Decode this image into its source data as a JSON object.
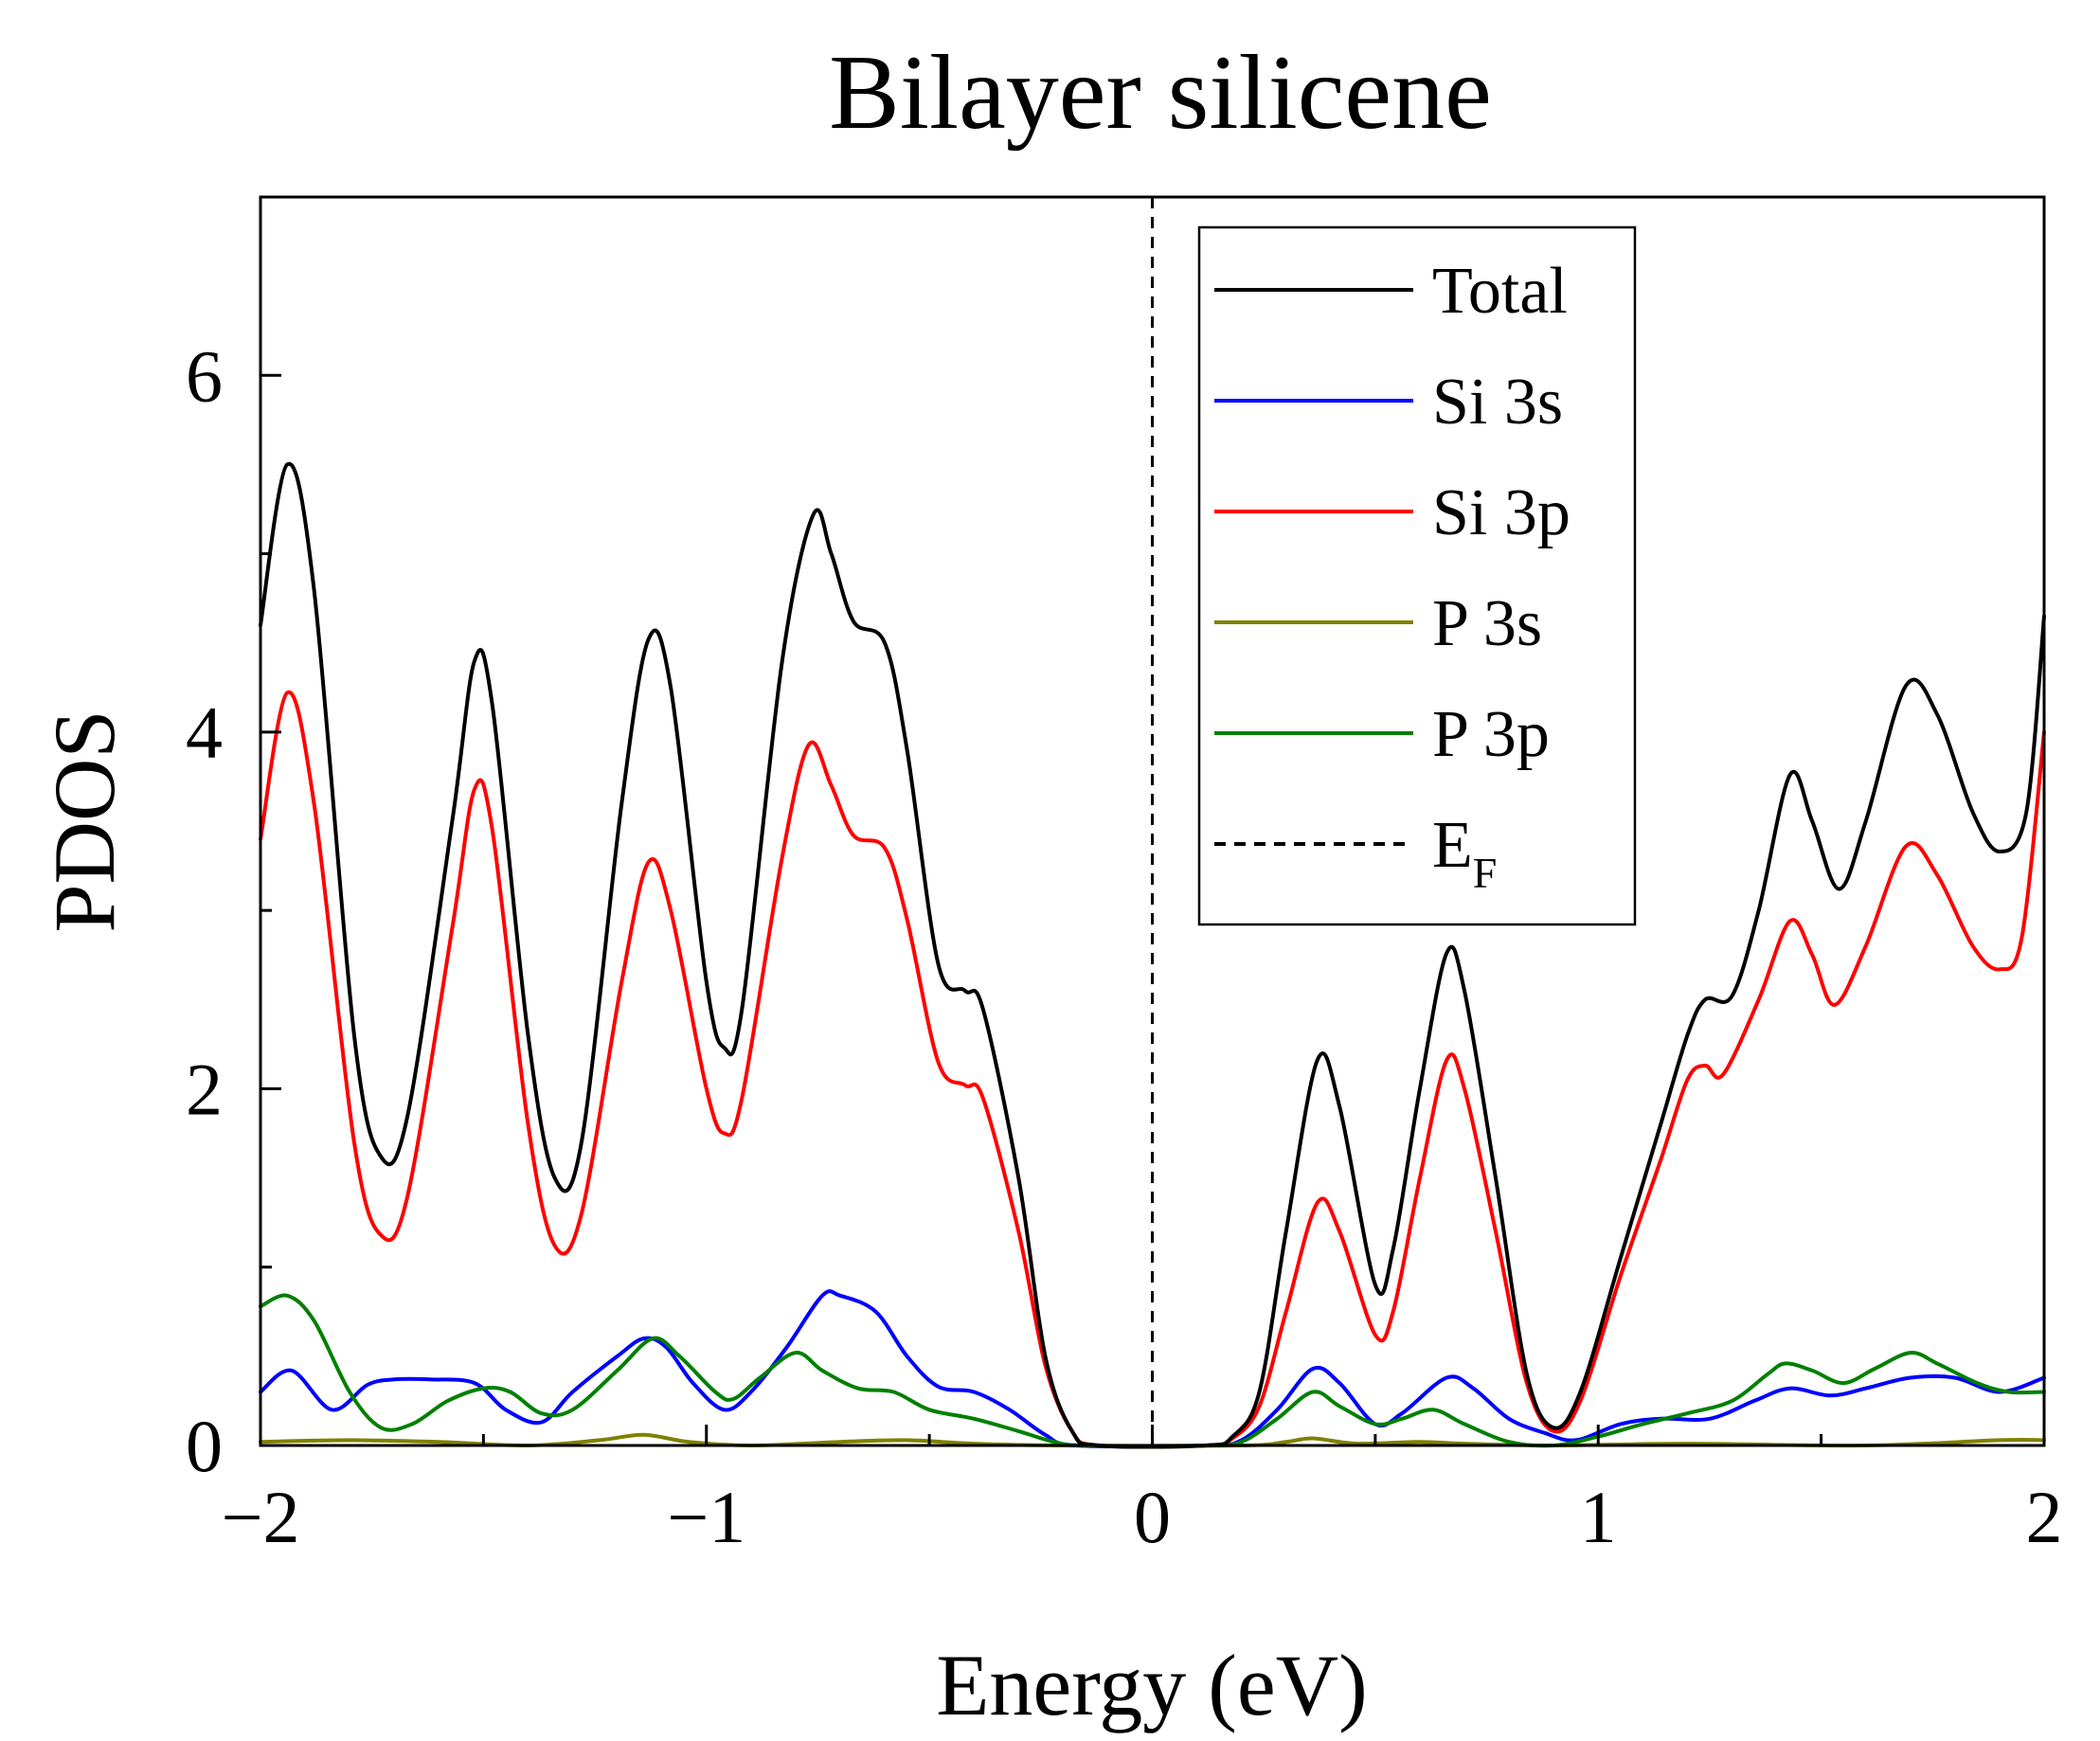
{
  "chart_data": {
    "type": "line",
    "title": "Bilayer silicene",
    "xlabel": "Energy (eV)",
    "ylabel": "PDOS",
    "xlim": [
      -2,
      2
    ],
    "ylim": [
      0,
      7
    ],
    "xticks": [
      -2,
      -1,
      0,
      1,
      2
    ],
    "xtick_labels": [
      "−2",
      "−1",
      "0",
      "1",
      "2"
    ],
    "yticks": [
      0,
      2,
      4,
      6
    ],
    "ytick_labels": [
      "0",
      "2",
      "4",
      "6"
    ],
    "fermi_level": {
      "x": 0,
      "label": "E",
      "label_sub": "F",
      "style": "dashed",
      "color": "#000000"
    },
    "legend": {
      "position": "top-right"
    },
    "series": [
      {
        "name": "Total",
        "color": "#000000",
        "points": [
          [
            -2,
            4.6
          ],
          [
            -1.94,
            5.5
          ],
          [
            -1.88,
            4.8
          ],
          [
            -1.79,
            2.3
          ],
          [
            -1.73,
            1.62
          ],
          [
            -1.67,
            1.85
          ],
          [
            -1.57,
            3.5
          ],
          [
            -1.52,
            4.4
          ],
          [
            -1.48,
            4.15
          ],
          [
            -1.4,
            2.3
          ],
          [
            -1.34,
            1.5
          ],
          [
            -1.28,
            1.7
          ],
          [
            -1.19,
            3.6
          ],
          [
            -1.13,
            4.52
          ],
          [
            -1.08,
            4.25
          ],
          [
            -1.0,
            2.6
          ],
          [
            -0.96,
            2.23
          ],
          [
            -0.92,
            2.45
          ],
          [
            -0.83,
            4.4
          ],
          [
            -0.76,
            5.22
          ],
          [
            -0.72,
            5.0
          ],
          [
            -0.67,
            4.62
          ],
          [
            -0.6,
            4.5
          ],
          [
            -0.55,
            3.9
          ],
          [
            -0.48,
            2.7
          ],
          [
            -0.42,
            2.55
          ],
          [
            -0.38,
            2.45
          ],
          [
            -0.3,
            1.5
          ],
          [
            -0.24,
            0.5
          ],
          [
            -0.18,
            0.08
          ],
          [
            -0.12,
            0.0
          ],
          [
            0.12,
            0.0
          ],
          [
            0.18,
            0.05
          ],
          [
            0.24,
            0.3
          ],
          [
            0.3,
            1.2
          ],
          [
            0.37,
            2.16
          ],
          [
            0.42,
            1.9
          ],
          [
            0.5,
            0.9
          ],
          [
            0.54,
            1.1
          ],
          [
            0.6,
            2.0
          ],
          [
            0.66,
            2.76
          ],
          [
            0.7,
            2.55
          ],
          [
            0.77,
            1.5
          ],
          [
            0.84,
            0.4
          ],
          [
            0.9,
            0.1
          ],
          [
            0.96,
            0.3
          ],
          [
            1.05,
            1.05
          ],
          [
            1.14,
            1.8
          ],
          [
            1.2,
            2.3
          ],
          [
            1.24,
            2.5
          ],
          [
            1.3,
            2.52
          ],
          [
            1.36,
            3.0
          ],
          [
            1.43,
            3.76
          ],
          [
            1.48,
            3.5
          ],
          [
            1.54,
            3.12
          ],
          [
            1.6,
            3.5
          ],
          [
            1.69,
            4.26
          ],
          [
            1.76,
            4.1
          ],
          [
            1.84,
            3.55
          ],
          [
            1.9,
            3.33
          ],
          [
            1.96,
            3.55
          ],
          [
            2.0,
            4.65
          ]
        ]
      },
      {
        "name": "Si 3s",
        "color": "#0000ff",
        "points": [
          [
            -2,
            0.3
          ],
          [
            -1.93,
            0.42
          ],
          [
            -1.84,
            0.2
          ],
          [
            -1.76,
            0.34
          ],
          [
            -1.7,
            0.37
          ],
          [
            -1.62,
            0.37
          ],
          [
            -1.52,
            0.35
          ],
          [
            -1.45,
            0.2
          ],
          [
            -1.37,
            0.13
          ],
          [
            -1.3,
            0.3
          ],
          [
            -1.2,
            0.5
          ],
          [
            -1.14,
            0.6
          ],
          [
            -1.09,
            0.55
          ],
          [
            -1.03,
            0.35
          ],
          [
            -0.96,
            0.2
          ],
          [
            -0.9,
            0.3
          ],
          [
            -0.82,
            0.55
          ],
          [
            -0.74,
            0.84
          ],
          [
            -0.7,
            0.84
          ],
          [
            -0.62,
            0.75
          ],
          [
            -0.55,
            0.5
          ],
          [
            -0.48,
            0.33
          ],
          [
            -0.4,
            0.3
          ],
          [
            -0.32,
            0.2
          ],
          [
            -0.24,
            0.06
          ],
          [
            -0.17,
            0.0
          ],
          [
            0.12,
            0.0
          ],
          [
            0.2,
            0.03
          ],
          [
            0.28,
            0.2
          ],
          [
            0.36,
            0.43
          ],
          [
            0.42,
            0.35
          ],
          [
            0.5,
            0.12
          ],
          [
            0.56,
            0.18
          ],
          [
            0.66,
            0.38
          ],
          [
            0.72,
            0.32
          ],
          [
            0.8,
            0.15
          ],
          [
            0.88,
            0.07
          ],
          [
            0.95,
            0.03
          ],
          [
            1.05,
            0.12
          ],
          [
            1.14,
            0.15
          ],
          [
            1.25,
            0.15
          ],
          [
            1.35,
            0.25
          ],
          [
            1.43,
            0.32
          ],
          [
            1.52,
            0.28
          ],
          [
            1.6,
            0.32
          ],
          [
            1.7,
            0.38
          ],
          [
            1.8,
            0.38
          ],
          [
            1.9,
            0.3
          ],
          [
            2.0,
            0.38
          ]
        ]
      },
      {
        "name": "Si 3p",
        "color": "#ff0000",
        "points": [
          [
            -2,
            3.4
          ],
          [
            -1.94,
            4.22
          ],
          [
            -1.88,
            3.6
          ],
          [
            -1.79,
            1.7
          ],
          [
            -1.73,
            1.18
          ],
          [
            -1.67,
            1.4
          ],
          [
            -1.57,
            2.9
          ],
          [
            -1.52,
            3.68
          ],
          [
            -1.48,
            3.45
          ],
          [
            -1.4,
            1.8
          ],
          [
            -1.34,
            1.12
          ],
          [
            -1.28,
            1.3
          ],
          [
            -1.19,
            2.6
          ],
          [
            -1.13,
            3.27
          ],
          [
            -1.08,
            3.0
          ],
          [
            -1.0,
            2.0
          ],
          [
            -0.96,
            1.75
          ],
          [
            -0.92,
            1.95
          ],
          [
            -0.83,
            3.3
          ],
          [
            -0.77,
            3.93
          ],
          [
            -0.72,
            3.7
          ],
          [
            -0.67,
            3.42
          ],
          [
            -0.6,
            3.35
          ],
          [
            -0.55,
            2.95
          ],
          [
            -0.48,
            2.15
          ],
          [
            -0.42,
            2.02
          ],
          [
            -0.38,
            1.95
          ],
          [
            -0.3,
            1.2
          ],
          [
            -0.24,
            0.45
          ],
          [
            -0.18,
            0.08
          ],
          [
            -0.12,
            0.0
          ],
          [
            0.12,
            0.0
          ],
          [
            0.18,
            0.04
          ],
          [
            0.24,
            0.22
          ],
          [
            0.3,
            0.75
          ],
          [
            0.37,
            1.36
          ],
          [
            0.42,
            1.2
          ],
          [
            0.5,
            0.62
          ],
          [
            0.54,
            0.75
          ],
          [
            0.6,
            1.5
          ],
          [
            0.66,
            2.16
          ],
          [
            0.7,
            2.0
          ],
          [
            0.77,
            1.2
          ],
          [
            0.84,
            0.35
          ],
          [
            0.9,
            0.08
          ],
          [
            0.96,
            0.25
          ],
          [
            1.05,
            0.95
          ],
          [
            1.14,
            1.6
          ],
          [
            1.2,
            2.05
          ],
          [
            1.24,
            2.13
          ],
          [
            1.28,
            2.08
          ],
          [
            1.36,
            2.5
          ],
          [
            1.43,
            2.94
          ],
          [
            1.48,
            2.75
          ],
          [
            1.53,
            2.47
          ],
          [
            1.6,
            2.8
          ],
          [
            1.69,
            3.36
          ],
          [
            1.76,
            3.2
          ],
          [
            1.84,
            2.8
          ],
          [
            1.9,
            2.67
          ],
          [
            1.95,
            2.85
          ],
          [
            2.0,
            4.0
          ]
        ]
      },
      {
        "name": "P 3s",
        "color": "#808000",
        "points": [
          [
            -2,
            0.02
          ],
          [
            -1.8,
            0.03
          ],
          [
            -1.6,
            0.02
          ],
          [
            -1.4,
            0.0
          ],
          [
            -1.24,
            0.03
          ],
          [
            -1.14,
            0.06
          ],
          [
            -1.04,
            0.02
          ],
          [
            -0.9,
            0.0
          ],
          [
            -0.7,
            0.02
          ],
          [
            -0.55,
            0.03
          ],
          [
            -0.4,
            0.01
          ],
          [
            -0.2,
            0.0
          ],
          [
            0.2,
            0.0
          ],
          [
            0.3,
            0.02
          ],
          [
            0.36,
            0.04
          ],
          [
            0.46,
            0.01
          ],
          [
            0.6,
            0.02
          ],
          [
            0.7,
            0.01
          ],
          [
            0.9,
            0.0
          ],
          [
            1.2,
            0.01
          ],
          [
            1.6,
            0.0
          ],
          [
            1.9,
            0.03
          ],
          [
            2.0,
            0.03
          ]
        ]
      },
      {
        "name": "P 3p",
        "color": "#008000",
        "points": [
          [
            -2,
            0.78
          ],
          [
            -1.94,
            0.84
          ],
          [
            -1.88,
            0.7
          ],
          [
            -1.8,
            0.3
          ],
          [
            -1.73,
            0.1
          ],
          [
            -1.66,
            0.12
          ],
          [
            -1.58,
            0.25
          ],
          [
            -1.5,
            0.32
          ],
          [
            -1.44,
            0.3
          ],
          [
            -1.37,
            0.18
          ],
          [
            -1.3,
            0.2
          ],
          [
            -1.2,
            0.42
          ],
          [
            -1.12,
            0.6
          ],
          [
            -1.06,
            0.5
          ],
          [
            -0.98,
            0.3
          ],
          [
            -0.94,
            0.26
          ],
          [
            -0.88,
            0.38
          ],
          [
            -0.8,
            0.52
          ],
          [
            -0.74,
            0.42
          ],
          [
            -0.66,
            0.32
          ],
          [
            -0.58,
            0.3
          ],
          [
            -0.5,
            0.2
          ],
          [
            -0.4,
            0.15
          ],
          [
            -0.3,
            0.08
          ],
          [
            -0.22,
            0.02
          ],
          [
            -0.15,
            0.0
          ],
          [
            0.12,
            0.0
          ],
          [
            0.2,
            0.02
          ],
          [
            0.28,
            0.15
          ],
          [
            0.36,
            0.3
          ],
          [
            0.42,
            0.22
          ],
          [
            0.5,
            0.12
          ],
          [
            0.56,
            0.15
          ],
          [
            0.63,
            0.2
          ],
          [
            0.7,
            0.12
          ],
          [
            0.8,
            0.02
          ],
          [
            0.9,
            0.0
          ],
          [
            1.0,
            0.05
          ],
          [
            1.1,
            0.12
          ],
          [
            1.2,
            0.18
          ],
          [
            1.3,
            0.25
          ],
          [
            1.38,
            0.4
          ],
          [
            1.42,
            0.46
          ],
          [
            1.48,
            0.42
          ],
          [
            1.55,
            0.35
          ],
          [
            1.62,
            0.43
          ],
          [
            1.7,
            0.52
          ],
          [
            1.76,
            0.46
          ],
          [
            1.85,
            0.35
          ],
          [
            1.92,
            0.3
          ],
          [
            2.0,
            0.3
          ]
        ]
      }
    ]
  }
}
